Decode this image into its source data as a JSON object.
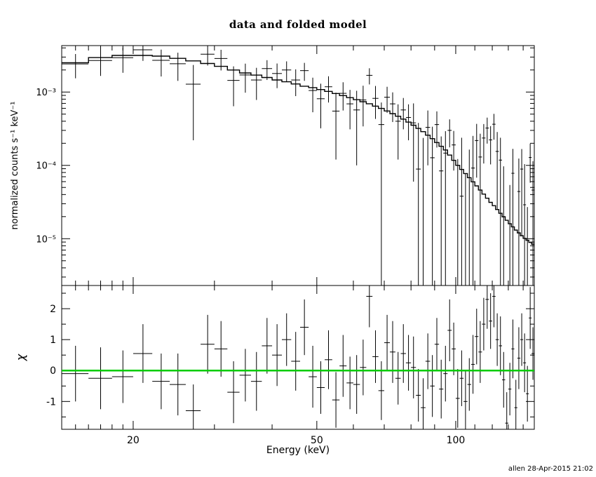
{
  "title": "data and folded model",
  "xlabel": "Energy (keV)",
  "ylabel_top": "normalized counts s⁻¹ keV⁻¹",
  "ylabel_bottom": "χ",
  "footer": "allen 28-Apr-2015 21:02",
  "colors": {
    "foreground": "#000000",
    "background": "#ffffff",
    "zero_line": "#00cc00"
  },
  "chart_data": [
    {
      "panel": "spectrum",
      "type": "scatter",
      "xscale": "log",
      "yscale": "log",
      "xlim": [
        14,
        148
      ],
      "ylim": [
        2.3e-06,
        0.0043
      ],
      "x_kev": [
        15,
        17,
        19,
        21,
        23,
        25,
        27,
        29,
        31,
        33,
        35,
        37,
        39,
        41,
        43,
        45,
        47,
        49,
        51,
        53,
        55,
        57,
        59,
        61,
        63,
        65,
        67,
        69,
        71,
        73,
        75,
        77,
        79,
        81,
        83,
        85,
        87,
        89,
        91,
        93,
        95,
        97,
        99,
        101,
        103,
        105,
        107,
        109,
        111,
        113,
        115,
        117,
        119,
        121,
        123,
        125,
        127,
        129,
        131,
        133,
        135,
        137,
        139,
        141,
        143,
        145,
        147
      ],
      "x_halfwidth_kev": 1,
      "xticks_major": [
        20,
        50,
        100
      ],
      "xtick_labels": [
        "20",
        "50",
        "100"
      ],
      "xticks_minor": [
        15,
        16,
        17,
        18,
        19,
        30,
        40,
        60,
        70,
        80,
        90,
        110,
        120,
        130,
        140
      ],
      "yticks_major": [
        0.001,
        0.0001,
        1e-05
      ],
      "ytick_labels": [
        "10⁻³",
        "10⁻⁴",
        "10⁻⁵"
      ],
      "series": [
        {
          "name": "data",
          "style": "errorbar",
          "y": [
            0.00242,
            0.00269,
            0.00294,
            0.00377,
            0.00271,
            0.00243,
            0.00128,
            0.00328,
            0.00287,
            0.00144,
            0.00171,
            0.00146,
            0.00209,
            0.00179,
            0.002,
            0.00146,
            0.00196,
            0.00105,
            0.00081,
            0.00118,
            0.00055,
            0.00096,
            0.00069,
            0.00057,
            0.00078,
            0.00169,
            0.00082,
            0.00036,
            0.00085,
            0.00069,
            0.0004,
            0.00057,
            0.00045,
            0.00038,
            8.9e-05,
            -2.3e-05,
            0.00033,
            0.000127,
            0.00036,
            8.4e-05,
            0.000147,
            0.0003,
            0.00019,
            -9.8e-05,
            3.8e-05,
            -0.000113,
            -1.1e-05,
            9.2e-05,
            0.000218,
            0.00013,
            0.000236,
            0.000323,
            0.000223,
            0.000364,
            0.000155,
            0.000118,
            -1.3e-05,
            -0.000152,
            -4.1e-05,
            7.8e-05,
            -8.9e-05,
            4.4e-05,
            8.9e-05,
            2.9e-05,
            -4.5e-05,
            0.000128,
            4.6e-05
          ],
          "yerr": [
            0.00088,
            0.00103,
            0.00111,
            0.00111,
            0.00108,
            0.00101,
            0.00106,
            0.00098,
            0.0009,
            0.0008,
            0.00073,
            0.00068,
            0.00063,
            0.00066,
            0.00062,
            0.00058,
            0.00054,
            0.00052,
            0.00049,
            0.00046,
            0.00043,
            0.0004,
            0.00038,
            0.00047,
            0.00044,
            0.00042,
            0.00039,
            0.00036,
            0.00033,
            0.0003,
            0.00028,
            0.00026,
            0.00023,
            0.00032,
            0.00029,
            0.00026,
            0.00023,
            0.00021,
            0.000185,
            0.000164,
            0.000146,
            0.000124,
            0.000105,
            0.00022,
            0.0002,
            0.00019,
            0.000175,
            0.00016,
            0.00015,
            0.00014,
            0.00013,
            0.000125,
            0.00012,
            0.00014,
            0.00013,
            0.00012,
            0.00011,
            0.0001,
            9.5e-05,
            9e-05,
            8.5e-05,
            8e-05,
            7.8e-05,
            7.5e-05,
            7.2e-05,
            7e-05,
            6.8e-05
          ]
        },
        {
          "name": "folded model",
          "style": "histogram",
          "y": [
            0.00251,
            0.00295,
            0.00316,
            0.00316,
            0.00309,
            0.00288,
            0.00266,
            0.00245,
            0.00224,
            0.002,
            0.00182,
            0.0017,
            0.00158,
            0.00146,
            0.00138,
            0.00129,
            0.0012,
            0.00115,
            0.00108,
            0.00102,
            0.000955,
            0.000895,
            0.000839,
            0.000787,
            0.000738,
            0.000692,
            0.000643,
            0.000597,
            0.000552,
            0.000508,
            0.000468,
            0.000427,
            0.000389,
            0.000353,
            0.000319,
            0.000288,
            0.000258,
            0.000231,
            0.000205,
            0.000182,
            0.000162,
            0.000138,
            0.000117,
            0.0001,
            8.79e-05,
            7.73e-05,
            6.79e-05,
            5.97e-05,
            5.25e-05,
            4.61e-05,
            4.06e-05,
            3.56e-05,
            3.13e-05,
            2.82e-05,
            2.5e-05,
            2.22e-05,
            1.99e-05,
            1.78e-05,
            1.6e-05,
            1.45e-05,
            1.31e-05,
            1.2e-05,
            1.1e-05,
            1.01e-05,
            9.5e-06,
            8.9e-06,
            8.4e-06
          ]
        }
      ]
    },
    {
      "panel": "residuals",
      "type": "scatter",
      "xscale": "log",
      "yscale": "linear",
      "xlim": [
        14,
        148
      ],
      "ylim": [
        -1.9,
        2.75
      ],
      "x_kev": [
        15,
        17,
        19,
        21,
        23,
        25,
        27,
        29,
        31,
        33,
        35,
        37,
        39,
        41,
        43,
        45,
        47,
        49,
        51,
        53,
        55,
        57,
        59,
        61,
        63,
        65,
        67,
        69,
        71,
        73,
        75,
        77,
        79,
        81,
        83,
        85,
        87,
        89,
        91,
        93,
        95,
        97,
        99,
        101,
        103,
        105,
        107,
        109,
        111,
        113,
        115,
        117,
        119,
        121,
        123,
        125,
        127,
        129,
        131,
        133,
        135,
        137,
        139,
        141,
        143,
        145,
        147
      ],
      "x_halfwidth_kev": 1,
      "yticks_major": [
        -1,
        0,
        1,
        2
      ],
      "ytick_labels": [
        "-1",
        "0",
        "1",
        "2"
      ],
      "yticks_minor": [
        -1.5,
        -0.5,
        0.5,
        1.5,
        2.5
      ],
      "series": [
        {
          "name": "chi residuals",
          "style": "errorbar",
          "y": [
            -0.1,
            -0.25,
            -0.2,
            0.55,
            -0.35,
            -0.45,
            -1.3,
            0.85,
            0.7,
            -0.7,
            -0.15,
            -0.35,
            0.8,
            0.5,
            1.0,
            0.3,
            1.4,
            -0.2,
            -0.55,
            0.35,
            -0.95,
            0.15,
            -0.4,
            -0.45,
            0.1,
            2.4,
            0.45,
            -0.65,
            0.9,
            0.6,
            -0.25,
            0.55,
            0.25,
            0.1,
            -0.8,
            -1.2,
            0.3,
            -0.5,
            0.85,
            -0.6,
            -0.1,
            1.3,
            0.7,
            -0.9,
            -0.25,
            -1.0,
            -0.45,
            0.2,
            1.1,
            0.6,
            1.5,
            2.3,
            1.6,
            2.4,
            1.0,
            0.8,
            -0.3,
            -1.7,
            -0.6,
            0.7,
            -1.2,
            0.4,
            1.0,
            0.25,
            -0.75,
            1.7,
            0.55
          ],
          "yerr": [
            0.9,
            1.0,
            0.85,
            0.95,
            0.9,
            1.0,
            0.85,
            0.95,
            0.9,
            1.0,
            0.85,
            0.95,
            0.9,
            1.0,
            0.85,
            0.95,
            0.9,
            1.0,
            0.85,
            0.95,
            0.9,
            1.0,
            0.85,
            0.95,
            0.9,
            1.0,
            0.85,
            0.95,
            0.9,
            1.0,
            0.85,
            0.95,
            0.9,
            1.0,
            0.85,
            0.95,
            0.9,
            1.0,
            0.85,
            0.95,
            0.9,
            1.0,
            0.85,
            0.95,
            0.9,
            1.0,
            0.85,
            0.95,
            0.9,
            1.0,
            0.85,
            0.95,
            0.9,
            1.0,
            0.85,
            0.95,
            0.9,
            1.0,
            0.85,
            0.95,
            0.9,
            1.0,
            0.85,
            0.95,
            0.9,
            1.0,
            0.85
          ]
        },
        {
          "name": "zero line",
          "style": "hline",
          "y0": 0,
          "color": "#00cc00"
        }
      ]
    }
  ]
}
